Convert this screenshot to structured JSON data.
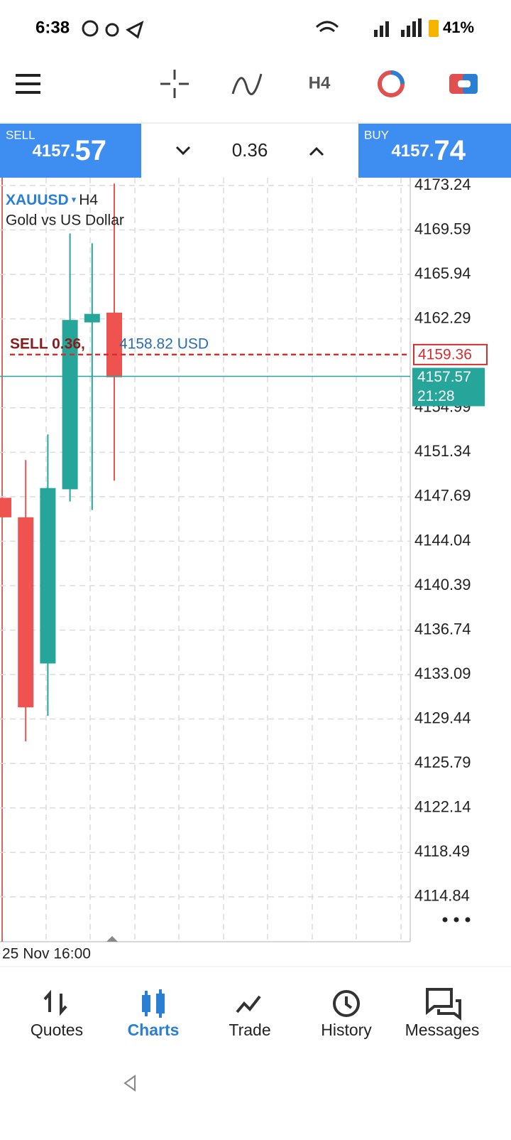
{
  "status_bar": {
    "time": "6:38",
    "battery": "41%"
  },
  "toolbar": {
    "timeframe": "H4"
  },
  "trade_panel": {
    "sell_label": "SELL",
    "sell_price_main": "4157.",
    "sell_price_big": "57",
    "volume": "0.36",
    "buy_label": "BUY",
    "buy_price_main": "4157.",
    "buy_price_big": "74"
  },
  "chart_data": {
    "type": "candlestick",
    "symbol": "XAUUSD",
    "timeframe": "H4",
    "description": "Gold vs US Dollar",
    "categories": [
      null,
      null,
      null,
      null,
      null,
      null
    ],
    "series": [
      {
        "up_color": "#26a69a",
        "down_color": "#ef5350",
        "open": [
          4147.6,
          4146.0,
          4134.0,
          4148.3,
          4162.0,
          4162.8
        ],
        "high": [
          4147.6,
          4150.7,
          4152.8,
          4169.3,
          4168.5,
          4173.4
        ],
        "low": [
          4146.0,
          4127.6,
          4129.7,
          4147.3,
          4146.6,
          4149.0
        ],
        "close": [
          4146.0,
          4130.4,
          4148.4,
          4162.2,
          4162.7,
          4157.5
        ]
      }
    ],
    "ylim": [
      4111.16,
      4173.88
    ],
    "yticks": [
      4173.24,
      4169.59,
      4165.94,
      4162.29,
      4154.99,
      4151.34,
      4147.69,
      4144.04,
      4140.39,
      4136.74,
      4133.09,
      4129.44,
      4125.79,
      4122.14,
      4118.49,
      4114.84
    ],
    "grid": true,
    "order_line": {
      "label": "SELL 0.36,",
      "profit_label": "4158.82 USD",
      "value": 4159.36,
      "color": "#d32f2f"
    },
    "price_line": {
      "value": 4157.57,
      "time": "21:28",
      "color": "#26a69a"
    },
    "x_label": "25 Nov 16:00"
  },
  "nav": {
    "items": [
      "Quotes",
      "Charts",
      "Trade",
      "History",
      "Messages"
    ],
    "active": 1
  }
}
